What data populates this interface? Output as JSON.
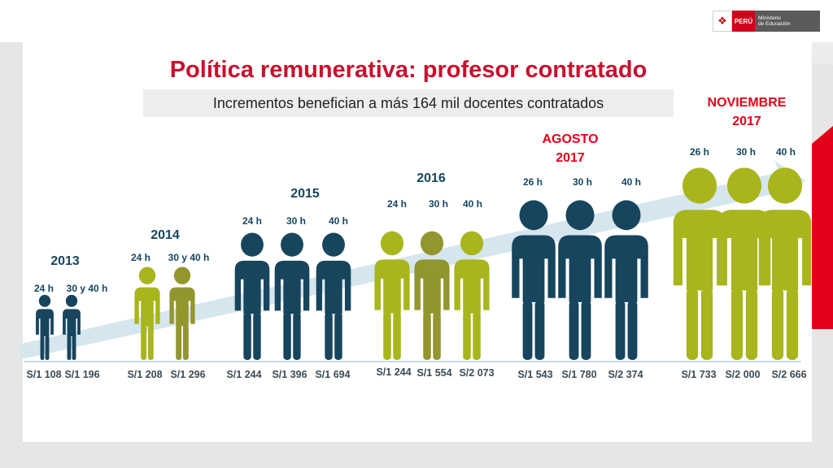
{
  "title": "Política remunerativa: profesor contratado",
  "subtitle": "Incrementos benefician a más 164 mil docentes contratados",
  "logo": {
    "country": "PERÚ",
    "ministry_line1": "Ministerio",
    "ministry_line2": "de Educación"
  },
  "colors": {
    "navy": "#17455e",
    "lime": "#a8b51d",
    "olive": "#93962e",
    "title_red": "#c8102e",
    "accent_red": "#e2001a",
    "arrow": "#d6e6ee"
  },
  "chart_data": {
    "type": "bar",
    "title": "Política remunerativa: profesor contratado",
    "subtitle": "Incrementos benefician a más 164 mil docentes contratados",
    "groups": [
      {
        "label": "2013",
        "items": [
          {
            "hours": "24 h",
            "salary": "S/1 108",
            "value": 1108
          },
          {
            "hours": "30 y 40 h",
            "salary": "S/1 196",
            "value": 1196
          }
        ]
      },
      {
        "label": "2014",
        "items": [
          {
            "hours": "24 h",
            "salary": "S/1 208",
            "value": 1208
          },
          {
            "hours": "30 y 40 h",
            "salary": "S/1 296",
            "value": 1296
          }
        ]
      },
      {
        "label": "2015",
        "items": [
          {
            "hours": "24 h",
            "salary": "S/1 244",
            "value": 1244
          },
          {
            "hours": "30 h",
            "salary": "S/1 396",
            "value": 1396
          },
          {
            "hours": "40 h",
            "salary": "S/1 694",
            "value": 1694
          }
        ]
      },
      {
        "label": "2016",
        "items": [
          {
            "hours": "24 h",
            "salary": "S/1 244",
            "value": 1244
          },
          {
            "hours": "30 h",
            "salary": "S/1 554",
            "value": 1554
          },
          {
            "hours": "40 h",
            "salary": "S/2 073",
            "value": 2073
          }
        ]
      },
      {
        "label": "AGOSTO\n2017",
        "items": [
          {
            "hours": "26 h",
            "salary": "S/1 543",
            "value": 1543
          },
          {
            "hours": "30 h",
            "salary": "S/1 780",
            "value": 1780
          },
          {
            "hours": "40 h",
            "salary": "S/2 374",
            "value": 2374
          }
        ]
      },
      {
        "label": "NOVIEMBRE\n2017",
        "items": [
          {
            "hours": "26 h",
            "salary": "S/1 733",
            "value": 1733
          },
          {
            "hours": "30 h",
            "salary": "S/2 000",
            "value": 2000
          },
          {
            "hours": "40 h",
            "salary": "S/2 666",
            "value": 2666
          }
        ]
      }
    ]
  }
}
